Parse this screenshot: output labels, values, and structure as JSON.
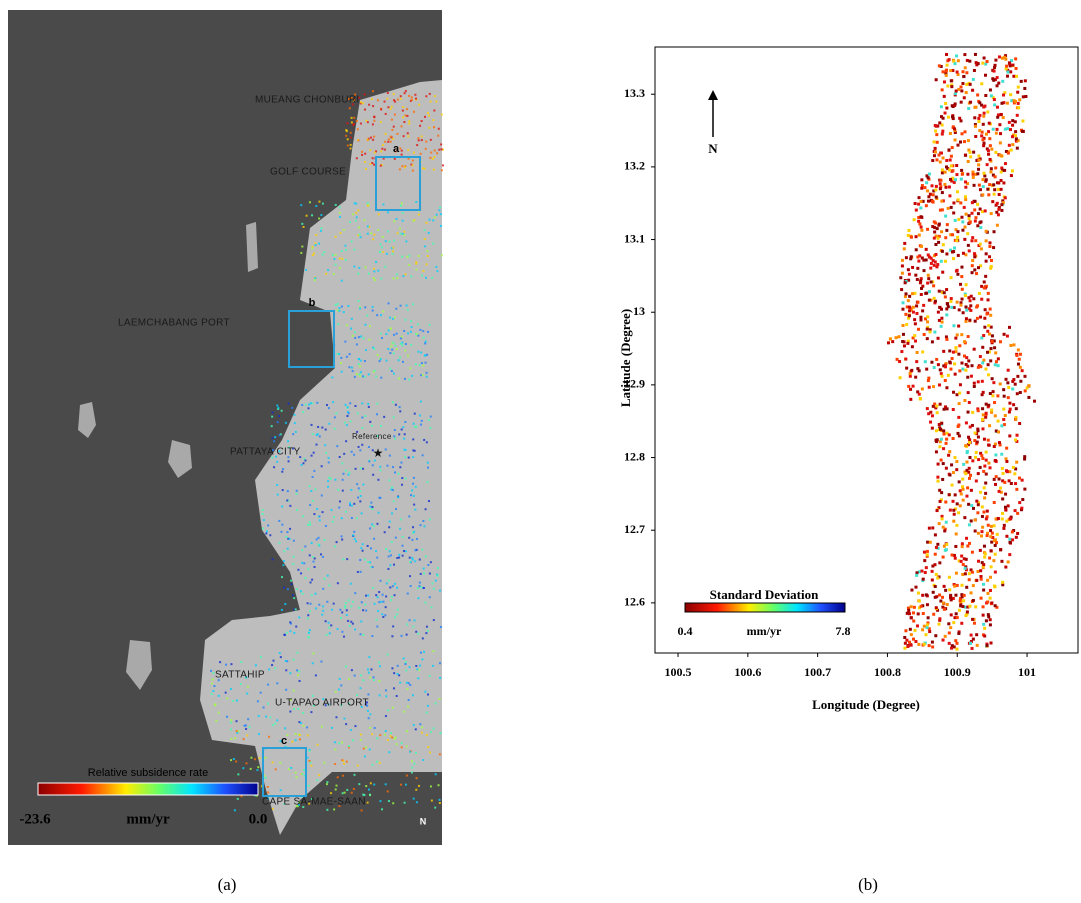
{
  "panel_a": {
    "labels": [
      "MUEANG CHONBURI",
      "GOLF COURSE",
      "LAEMCHABANG PORT",
      "Reference",
      "PATTAYA CITY",
      "SATTAHIP",
      "U-TAPAO AIRPORT",
      "CAPE SA-MAE-SAAN"
    ],
    "boxes": [
      "a",
      "b",
      "c"
    ],
    "colorbar": {
      "title": "Relative subsidence rate",
      "min": "-23.6",
      "unit": "mm/yr",
      "max": "0.0"
    },
    "north": "N",
    "caption": "(a)"
  },
  "panel_b": {
    "xlabel": "Longitude (Degree)",
    "ylabel": "Latitude (Degree)",
    "xlim": [
      100.467,
      101.073
    ],
    "ylim": [
      12.531,
      13.365
    ],
    "xticks": [
      100.5,
      100.6,
      100.7,
      100.8,
      100.9,
      101
    ],
    "yticks": [
      12.6,
      12.7,
      12.8,
      12.9,
      13,
      13.1,
      13.2,
      13.3
    ],
    "north": "N",
    "colorbar": {
      "title": "Standard Deviation",
      "min": "0.4",
      "unit": "mm/yr",
      "max": "7.8"
    },
    "caption": "(b)"
  }
}
